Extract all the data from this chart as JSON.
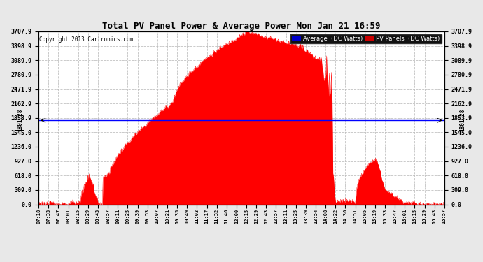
{
  "title": "Total PV Panel Power & Average Power Mon Jan 21 16:59",
  "copyright": "Copyright 2013 Cartronics.com",
  "avg_label": "1801.28",
  "average_value": 1801.28,
  "y_max": 3707.9,
  "y_ticks": [
    0.0,
    309.0,
    618.0,
    927.0,
    1236.0,
    1545.0,
    1853.9,
    2162.9,
    2471.9,
    2780.9,
    3089.9,
    3398.9,
    3707.9
  ],
  "background_color": "#e8e8e8",
  "plot_bg_color": "#ffffff",
  "bar_color": "#ff0000",
  "avg_line_color": "#0000ff",
  "legend_avg_bg": "#0000cc",
  "legend_pv_bg": "#cc0000",
  "grid_color": "#aaaaaa",
  "time_labels": [
    "07:18",
    "07:33",
    "07:47",
    "08:01",
    "08:15",
    "08:29",
    "08:43",
    "08:57",
    "09:11",
    "09:25",
    "09:39",
    "09:53",
    "10:07",
    "10:21",
    "10:35",
    "10:49",
    "11:03",
    "11:17",
    "11:32",
    "11:46",
    "12:00",
    "12:15",
    "12:29",
    "12:43",
    "12:57",
    "13:11",
    "13:25",
    "13:39",
    "13:54",
    "14:08",
    "14:22",
    "14:36",
    "14:51",
    "15:05",
    "15:19",
    "15:33",
    "15:47",
    "16:01",
    "16:15",
    "16:29",
    "16:43",
    "16:57"
  ]
}
